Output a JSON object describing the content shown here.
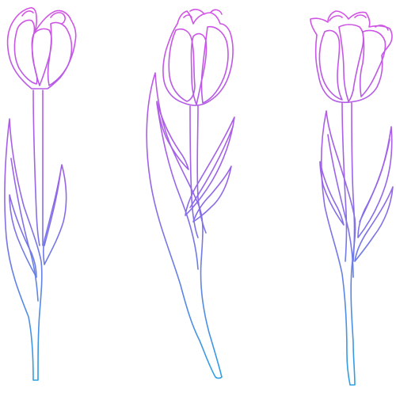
{
  "illustration": {
    "subject": "tulips",
    "count": 3,
    "gradient": {
      "top_color": "#d653e4",
      "bottom_color": "#23a6e2"
    },
    "background_color": "#ffffff",
    "tulips": [
      {
        "label": "tulip-left"
      },
      {
        "label": "tulip-center"
      },
      {
        "label": "tulip-right"
      }
    ]
  }
}
